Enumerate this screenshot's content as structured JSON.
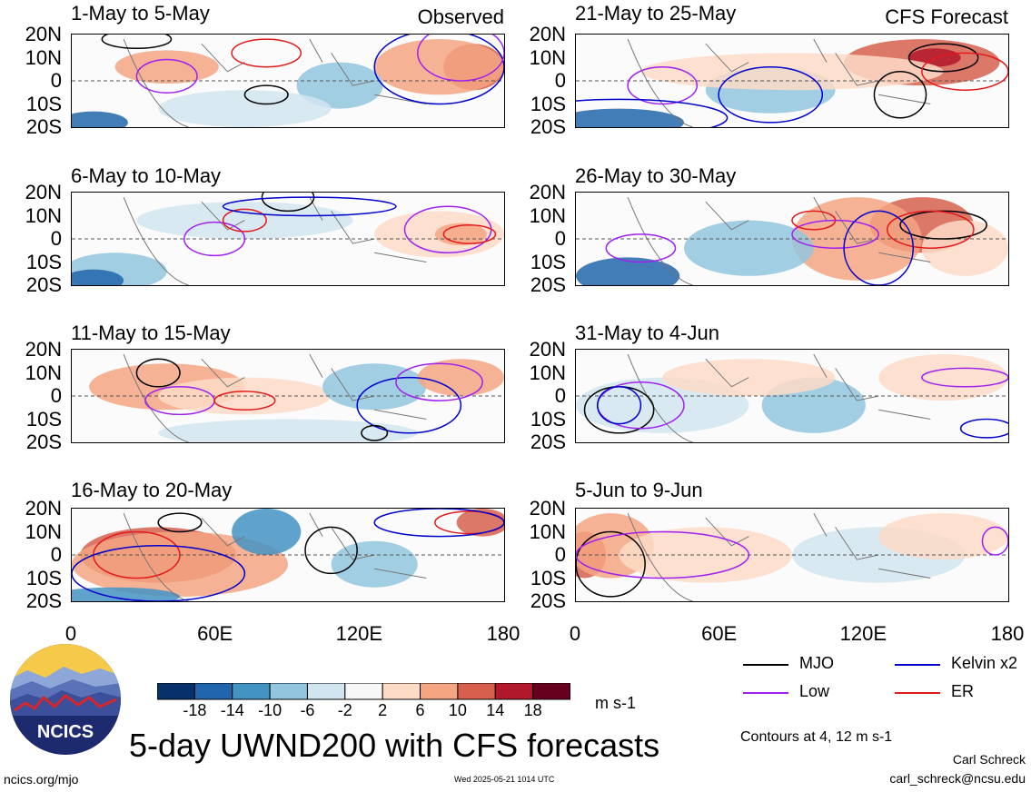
{
  "panels": [
    {
      "id": "p1",
      "title": "1-May to 5-May",
      "tag": "Observed",
      "col": 0,
      "row": 0
    },
    {
      "id": "p2",
      "title": "6-May to 10-May",
      "tag": "",
      "col": 0,
      "row": 1
    },
    {
      "id": "p3",
      "title": "11-May to 15-May",
      "tag": "",
      "col": 0,
      "row": 2
    },
    {
      "id": "p4",
      "title": "16-May to 20-May",
      "tag": "",
      "col": 0,
      "row": 3
    },
    {
      "id": "p5",
      "title": "21-May to 25-May",
      "tag": "CFS Forecast",
      "col": 1,
      "row": 0
    },
    {
      "id": "p6",
      "title": "26-May to 30-May",
      "tag": "",
      "col": 1,
      "row": 1
    },
    {
      "id": "p7",
      "title": "31-May to 4-Jun",
      "tag": "",
      "col": 1,
      "row": 2
    },
    {
      "id": "p8",
      "title": "5-Jun to 9-Jun",
      "tag": "",
      "col": 1,
      "row": 3
    }
  ],
  "lat_labels": [
    "20N",
    "10N",
    "0",
    "10S",
    "20S"
  ],
  "lon_labels": [
    "0",
    "60E",
    "120E",
    "180"
  ],
  "colorbar": {
    "colors": [
      "#08306b",
      "#2166ac",
      "#4393c3",
      "#92c5de",
      "#d1e5f0",
      "#f7f7f7",
      "#fddbc7",
      "#f4a582",
      "#d6604d",
      "#b2182b",
      "#67001f"
    ],
    "ticks": [
      "-18",
      "-14",
      "-10",
      "-6",
      "-2",
      "2",
      "6",
      "10",
      "14",
      "18"
    ],
    "units": "m s-1"
  },
  "legend": [
    {
      "label": "MJO",
      "color": "#000000"
    },
    {
      "label": "Kelvin x2",
      "color": "#0000cc"
    },
    {
      "label": "Low",
      "color": "#a020f0"
    },
    {
      "label": "ER",
      "color": "#e31a1c"
    }
  ],
  "contours_note": "Contours at 4, 12 m s-1",
  "main_title": "5-day UWND200 with CFS forecasts",
  "author_name": "Carl Schreck",
  "author_email": "carl_schreck@ncsu.edu",
  "site": "ncics.org/mjo",
  "timestamp": "Wed 2025-05-21 1014 UTC",
  "logo_text": "NCICS"
}
